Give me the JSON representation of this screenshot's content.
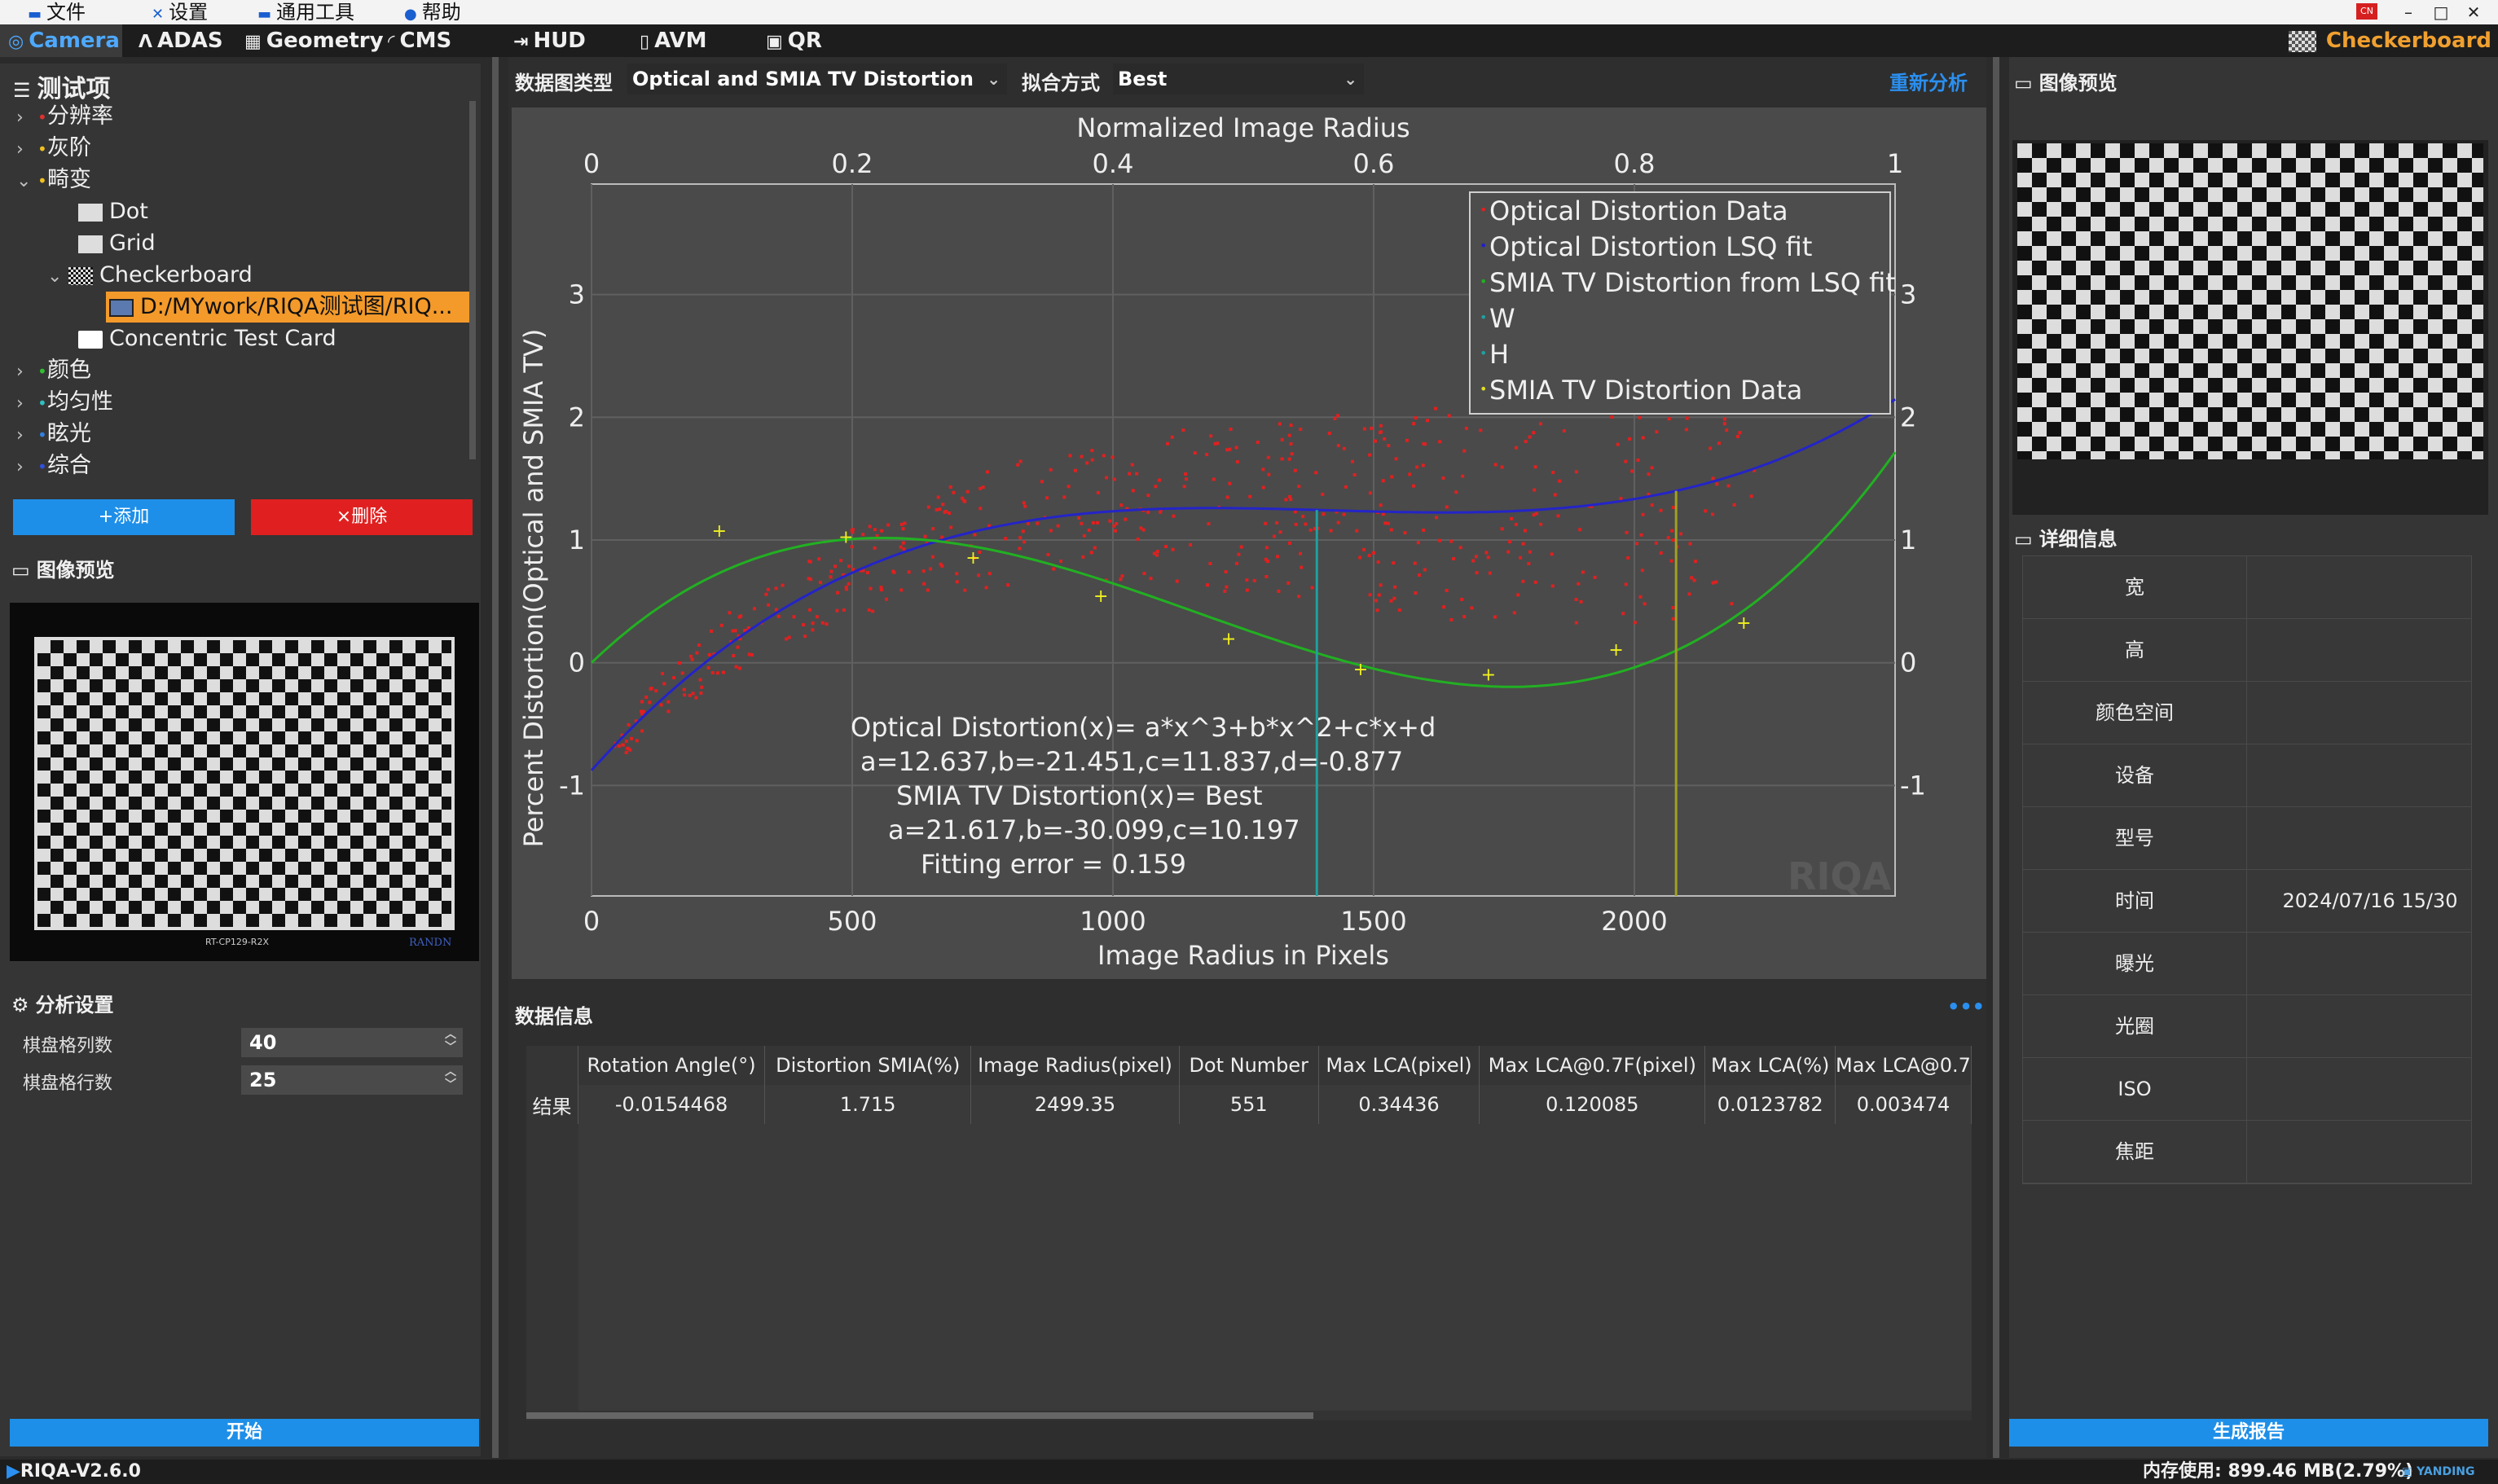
{
  "menubar": {
    "items": [
      {
        "icon": "folder-icon",
        "label": "文件"
      },
      {
        "icon": "tools-icon",
        "label": "设置"
      },
      {
        "icon": "toolbox-icon",
        "label": "通用工具"
      },
      {
        "icon": "info-icon",
        "label": "帮助"
      }
    ],
    "lang_badge": "CN"
  },
  "tabs": [
    {
      "label": "Camera",
      "icon": "camera-icon",
      "active": true
    },
    {
      "label": "ADAS",
      "icon": "adas-icon"
    },
    {
      "label": "Geometry",
      "icon": "geometry-icon"
    },
    {
      "label": "CMS",
      "icon": "cms-icon"
    },
    {
      "label": "HUD",
      "icon": "hud-icon"
    },
    {
      "label": "AVM",
      "icon": "avm-icon"
    },
    {
      "label": "QR",
      "icon": "qr-icon"
    }
  ],
  "current_mode": "Checkerboard",
  "left": {
    "test_items_title": "测试项",
    "tree": [
      {
        "label": "分辨率",
        "dot_color": "#e03030",
        "expanded": false
      },
      {
        "label": "灰阶",
        "dot_color": "#f0c020",
        "expanded": false
      },
      {
        "label": "畸变",
        "dot_color": "#f0c020",
        "expanded": true
      },
      {
        "label": "Dot",
        "level": 1
      },
      {
        "label": "Grid",
        "level": 1
      },
      {
        "label": "Checkerboard",
        "level": 1,
        "expanded": true
      },
      {
        "label": "D:/MYwork/RIQA测试图/RIQ...",
        "level": 2,
        "selected": true
      },
      {
        "label": "Concentric Test Card",
        "level": 1
      },
      {
        "label": "颜色",
        "dot_color": "#30c030",
        "expanded": false
      },
      {
        "label": "均匀性",
        "dot_color": "#30c0c0",
        "expanded": false
      },
      {
        "label": "眩光",
        "dot_color": "#3080e0",
        "expanded": false
      },
      {
        "label": "综合",
        "dot_color": "#3050e0",
        "expanded": false
      }
    ],
    "add_label": "+添加",
    "delete_label": "×删除",
    "preview_title": "图像预览",
    "preview_caption_left": "RT-CP129-R2X",
    "preview_caption_right": "RANDN",
    "analysis_title": "分析设置",
    "settings": [
      {
        "label": "棋盘格列数",
        "value": "40"
      },
      {
        "label": "棋盘格行数",
        "value": "25"
      }
    ],
    "start_label": "开始"
  },
  "center": {
    "data_type_label": "数据图类型",
    "data_type_value": "Optical and SMIA TV Distortion",
    "fit_label": "拟合方式",
    "fit_value": "Best",
    "reanalyze_label": "重新分析",
    "data_info_label": "数据信息",
    "more_label": "•••"
  },
  "chart_data": {
    "type": "scatter",
    "title": "Normalized Image Radius",
    "xlabel": "Image Radius in Pixels",
    "ylabel": "Percent Distortion(Optical and SMIA TV)",
    "xlim": [
      0,
      2500
    ],
    "ylim": [
      -1.9,
      3.9
    ],
    "x_ticks": [
      "0",
      "500",
      "1000",
      "1500",
      "2000"
    ],
    "top_ticks": [
      "0",
      "0.2",
      "0.4",
      "0.6",
      "0.8",
      "1"
    ],
    "y_ticks": [
      "-1",
      "0",
      "1",
      "2",
      "3"
    ],
    "right_ticks": [
      "-1",
      "0",
      "1",
      "2",
      "3"
    ],
    "legend": [
      {
        "name": "Optical Distortion Data",
        "color": "#e02020"
      },
      {
        "name": "Optical Distortion LSQ fit",
        "color": "#2020c8"
      },
      {
        "name": "SMIA TV Distortion from LSQ fit",
        "color": "#20b020"
      },
      {
        "name": "W",
        "color": "#20a0a0"
      },
      {
        "name": "H",
        "color": "#20a0a0"
      },
      {
        "name": "SMIA TV Distortion Data",
        "color": "#e0e020"
      }
    ],
    "annotation": [
      "Optical Distortion(x)= a*x^3+b*x^2+c*x+d",
      "a=12.637,b=-21.451,c=11.837,d=-0.877",
      "SMIA TV Distortion(x)= Best",
      "a=21.617,b=-30.099,c=10.197",
      "Fitting error = 0.159"
    ],
    "optical_fit": {
      "a": 12.637,
      "b": -21.451,
      "c": 11.837,
      "d": -0.877
    },
    "smia_fit": {
      "a": 21.617,
      "b": -30.099,
      "c": 10.197
    },
    "w_line_x": 1391,
    "h_line_x": 2080,
    "smia_points": [
      {
        "x": 245,
        "y": 1.08
      },
      {
        "x": 488,
        "y": 1.03
      },
      {
        "x": 732,
        "y": 0.86
      },
      {
        "x": 977,
        "y": 0.55
      },
      {
        "x": 1222,
        "y": 0.2
      },
      {
        "x": 1475,
        "y": -0.05
      },
      {
        "x": 1720,
        "y": -0.09
      },
      {
        "x": 1965,
        "y": 0.11
      },
      {
        "x": 2210,
        "y": 0.33
      }
    ],
    "watermark": "RIQA"
  },
  "table": {
    "row_header": "结果",
    "columns": [
      "Rotation Angle(°)",
      "Distortion SMIA(%)",
      "Image Radius(pixel)",
      "Dot Number",
      "Max LCA(pixel)",
      "Max LCA@0.7F(pixel)",
      "Max LCA(%)",
      "Max LCA@0.7"
    ],
    "values": [
      "-0.0154468",
      "1.715",
      "2499.35",
      "551",
      "0.34436",
      "0.120085",
      "0.0123782",
      "0.003474"
    ]
  },
  "right": {
    "preview_title": "图像预览",
    "details_title": "详细信息",
    "details": [
      {
        "key": "宽",
        "value": ""
      },
      {
        "key": "高",
        "value": ""
      },
      {
        "key": "颜色空间",
        "value": ""
      },
      {
        "key": "设备",
        "value": ""
      },
      {
        "key": "型号",
        "value": ""
      },
      {
        "key": "时间",
        "value": "2024/07/16 15/30"
      },
      {
        "key": "曝光",
        "value": ""
      },
      {
        "key": "光圈",
        "value": ""
      },
      {
        "key": "ISO",
        "value": ""
      },
      {
        "key": "焦距",
        "value": ""
      }
    ],
    "report_label": "生成报告"
  },
  "status": {
    "version": "RIQA-V2.6.0",
    "memory": "内存使用: 899.46 MB(2.79%)",
    "brand": "YANDING"
  }
}
